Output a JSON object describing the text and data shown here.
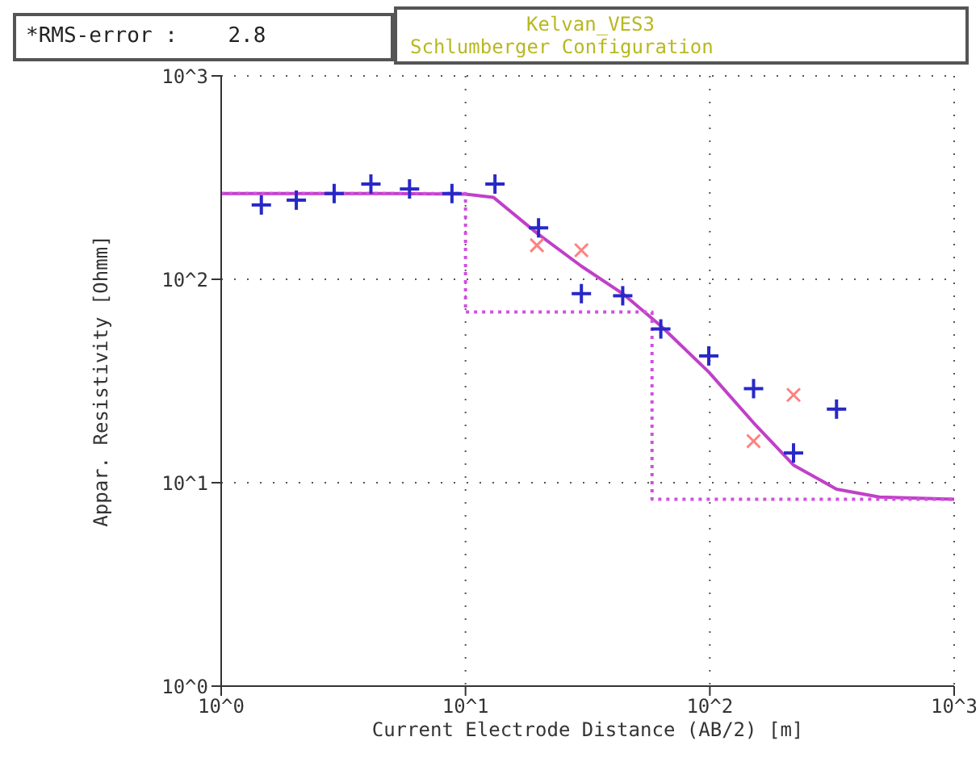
{
  "chart_data": {
    "type": "scatter",
    "title": "Kelvan_VES3",
    "subtitle": "Schlumberger Configuration",
    "annotations": [
      "*RMS-error :    2.8"
    ],
    "xlabel": "Current Electrode Distance (AB/2) [m]",
    "ylabel": "Appar. Resistivity [Ohmm]",
    "log": "xy",
    "grid": true,
    "xlim": [
      1,
      1000
    ],
    "ylim": [
      1,
      1000
    ],
    "xticks": [
      {
        "value": 1,
        "label": "10^0"
      },
      {
        "value": 10,
        "label": "10^1"
      },
      {
        "value": 100,
        "label": "10^2"
      },
      {
        "value": 1000,
        "label": "10^3"
      }
    ],
    "yticks": [
      {
        "value": 1,
        "label": "10^0"
      },
      {
        "value": 10,
        "label": "10^1"
      },
      {
        "value": 100,
        "label": "10^2"
      },
      {
        "value": 1000,
        "label": "10^3"
      }
    ],
    "series": [
      {
        "marker": "plus",
        "color": "#2828c8",
        "x": [
          1.46,
          2.03,
          2.9,
          4.1,
          5.9,
          8.8,
          13.2,
          19.9,
          29.8,
          44,
          63,
          99,
          151,
          220,
          330
        ],
        "values": [
          232,
          245,
          264,
          294,
          278,
          264,
          294,
          179,
          85,
          83,
          57,
          42,
          29,
          14,
          23
        ]
      },
      {
        "marker": "cross",
        "color": "#ff8080",
        "x": [
          19.6,
          29.8,
          151,
          220
        ],
        "values": [
          147,
          139,
          16,
          27
        ]
      },
      {
        "type": "line",
        "marker": "none",
        "line_style": "solid",
        "color": "#c040c8",
        "x": [
          1,
          5,
          10,
          13,
          19.8,
          29.8,
          44,
          63,
          99,
          151,
          220,
          330,
          494,
          1000
        ],
        "values": [
          264,
          264,
          262,
          253,
          167,
          116,
          85,
          59,
          35,
          19.7,
          12.2,
          9.3,
          8.5,
          8.3
        ]
      },
      {
        "type": "step",
        "marker": "none",
        "line_style": "dotted",
        "color": "#d050e0",
        "x": [
          1,
          10,
          58,
          1000
        ],
        "values": [
          264,
          69,
          8.3,
          8.3
        ]
      }
    ]
  }
}
